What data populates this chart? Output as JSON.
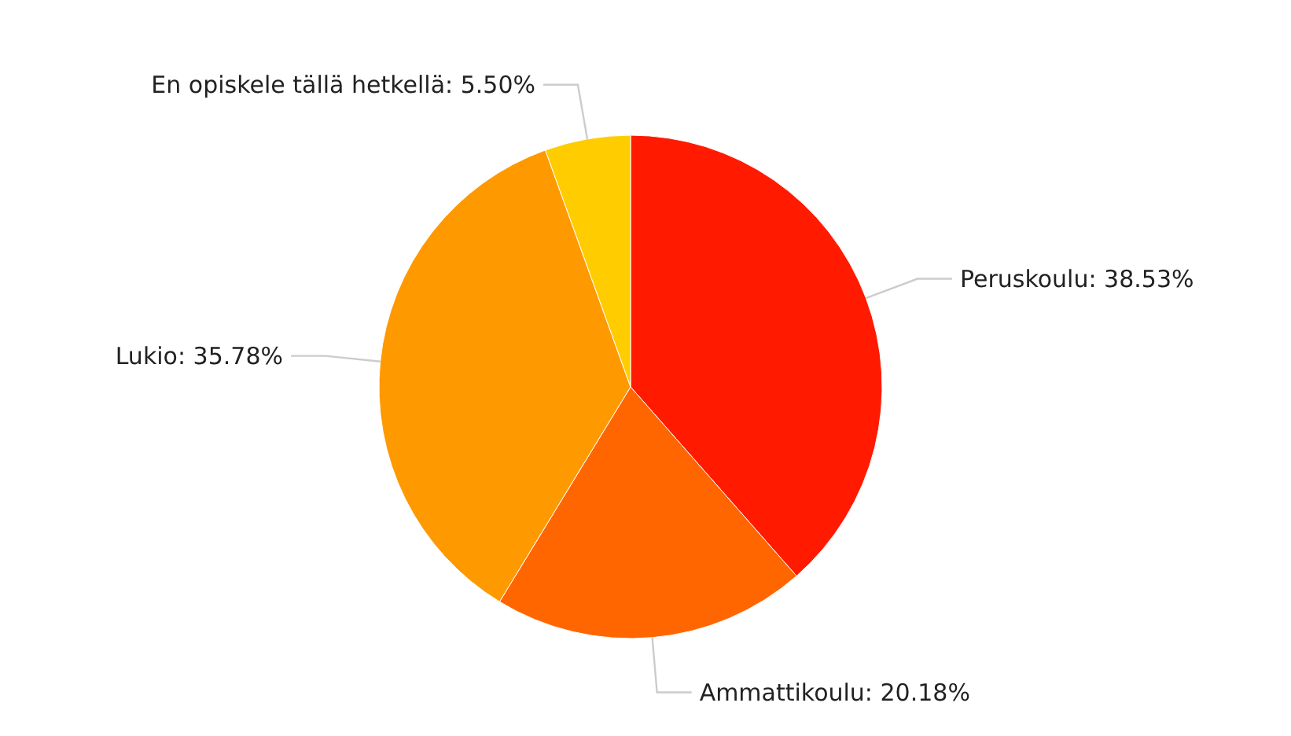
{
  "chart_data": {
    "type": "pie",
    "categories": [
      "Peruskoulu",
      "Ammattikoulu",
      "Lukio",
      "En opiskele tällä hetkellä"
    ],
    "values": [
      38.53,
      20.18,
      35.78,
      5.5
    ],
    "colors": [
      "#ff1a00",
      "#ff6600",
      "#ff9900",
      "#ffcc00"
    ],
    "value_labels": [
      "38.53%",
      "20.18%",
      "35.78%",
      "5.50%"
    ]
  }
}
